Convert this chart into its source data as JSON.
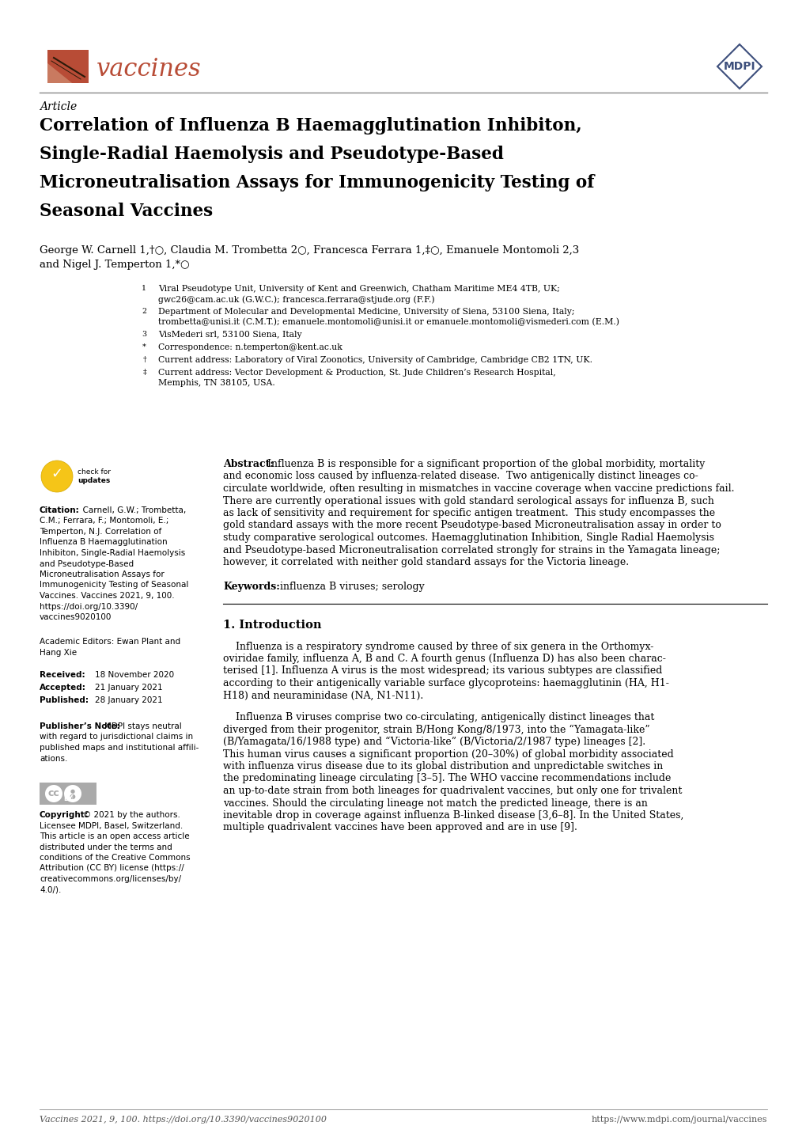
{
  "bg_color": "#ffffff",
  "header_line_color": "#888888",
  "footer_line_color": "#888888",
  "journal_name": "vaccines",
  "journal_color": "#b84c36",
  "logo_rect_color1": "#b84c36",
  "logo_rect_color2": "#c97a60",
  "mdpi_color": "#3d4f7c",
  "title_line1": "Correlation of Influenza B Haemagglutination Inhibiton,",
  "title_line2": "Single-Radial Haemolysis and Pseudotype-Based",
  "title_line3": "Microneutralisation Assays for Immunogenicity Testing of",
  "title_line4": "Seasonal Vaccines",
  "footer_citation": "Vaccines 2021, 9, 100. https://doi.org/10.3390/vaccines9020100",
  "footer_url": "https://www.mdpi.com/journal/vaccines"
}
